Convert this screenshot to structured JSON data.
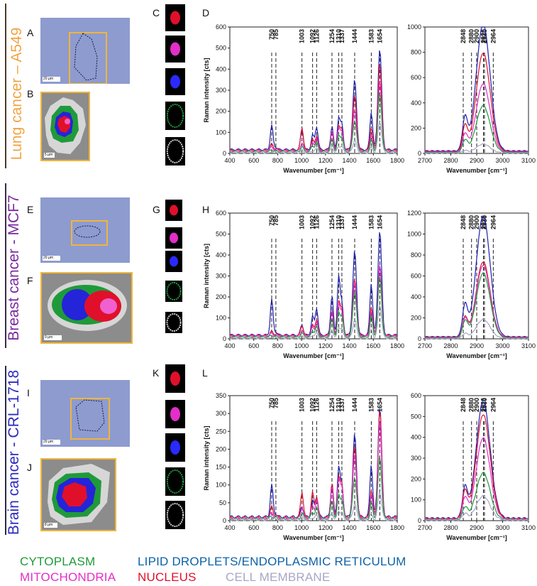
{
  "panels": {
    "A": "A",
    "B": "B",
    "C": "C",
    "D": "D",
    "E": "E",
    "F": "F",
    "G": "G",
    "H": "H",
    "I": "I",
    "J": "J",
    "K": "K",
    "L": "L"
  },
  "row_titles": {
    "lung": "Lung cancer – A549",
    "breast": "Breast cancer - MCF7",
    "brain": "Brain cancer - CRL-1718"
  },
  "colors": {
    "lung": "#f0a443",
    "breast": "#7a2a9e",
    "brain": "#2c2cbf",
    "cytoplasm": "#1f9a3a",
    "lipid": "#0b62a8",
    "mitochondria": "#e12fc8",
    "nucleus": "#e0102b",
    "membrane": "#a8a6c6",
    "blue_line": "#1f1fb0"
  },
  "scale_bars": {
    "A": "20 μm",
    "B": "5 μm",
    "E": "20 μm",
    "F": "9 μm",
    "I": "20 μm",
    "J": "8 μm"
  },
  "legend": {
    "cytoplasm": "CYTOPLASM",
    "lipid": "LIPID DROPLETS/ENDOPLASMIC RETICULUM",
    "mitochondria": "MITOCHONDRIA",
    "nucleus": "NUCLEUS",
    "membrane": "CELL MEMBRANE"
  },
  "chart_data": [
    {
      "id": "D-fingerprint",
      "type": "line",
      "panel": "D",
      "xlabel": "Wavenumber [cm⁻¹]",
      "ylabel": "Raman intensity [cts]",
      "xlim": [
        400,
        1800
      ],
      "ylim": [
        0,
        600
      ],
      "xticks": [
        "400",
        "600",
        "800",
        "1000",
        "1200",
        "1400",
        "1600",
        "1800"
      ],
      "yticks": [
        "0",
        "100",
        "200",
        "300",
        "400",
        "500",
        "600"
      ],
      "peak_labels": [
        "750",
        "785",
        "1003",
        "1092",
        "1126",
        "1254",
        "1310",
        "1337",
        "1444",
        "1583",
        "1654"
      ],
      "peak_x": [
        750,
        785,
        1003,
        1092,
        1126,
        1254,
        1310,
        1337,
        1444,
        1583,
        1654
      ],
      "series": [
        {
          "name": "lipid droplets/ER",
          "color": "#1f1fb0",
          "base": 18,
          "heights": [
            115,
            12,
            95,
            70,
            110,
            110,
            150,
            120,
            330,
            180,
            480
          ]
        },
        {
          "name": "nucleus",
          "color": "#e0102b",
          "base": 15,
          "heights": [
            30,
            10,
            110,
            50,
            70,
            90,
            110,
            100,
            260,
            110,
            410
          ]
        },
        {
          "name": "mitochondria",
          "color": "#e12fc8",
          "base": 12,
          "heights": [
            20,
            8,
            40,
            40,
            60,
            90,
            105,
            95,
            200,
            75,
            330
          ]
        },
        {
          "name": "cytoplasm",
          "color": "#1f9a3a",
          "base": 8,
          "heights": [
            10,
            5,
            25,
            30,
            45,
            60,
            75,
            70,
            150,
            55,
            280
          ]
        },
        {
          "name": "cell membrane",
          "color": "#a8a6c6",
          "base": 3,
          "heights": [
            5,
            3,
            10,
            10,
            20,
            25,
            30,
            30,
            60,
            25,
            150
          ]
        }
      ]
    },
    {
      "id": "D-highwave",
      "type": "line",
      "panel": "D",
      "xlabel": "Wavenumber [cm⁻¹]",
      "ylabel": "",
      "xlim": [
        2700,
        3100
      ],
      "ylim": [
        0,
        1000
      ],
      "xticks": [
        "2700",
        "2800",
        "2900",
        "3000",
        "3100"
      ],
      "yticks": [
        "0",
        "200",
        "400",
        "600",
        "800",
        "1000"
      ],
      "peak_labels": [
        "2848",
        "2880",
        "2900",
        "2926",
        "2930",
        "2964"
      ],
      "peak_x": [
        2848,
        2880,
        2900,
        2926,
        2930,
        2964
      ],
      "series": [
        {
          "name": "lipid droplets/ER",
          "color": "#1f1fb0",
          "base": 20,
          "peak": 1000
        },
        {
          "name": "nucleus",
          "color": "#e0102b",
          "base": 15,
          "peak": 780
        },
        {
          "name": "mitochondria",
          "color": "#e12fc8",
          "base": 12,
          "peak": 540
        },
        {
          "name": "cytoplasm",
          "color": "#1f9a3a",
          "base": 8,
          "peak": 370
        },
        {
          "name": "cell membrane",
          "color": "#a8a6c6",
          "base": 4,
          "peak": 70
        }
      ]
    },
    {
      "id": "H-fingerprint",
      "type": "line",
      "panel": "H",
      "xlabel": "Wavenumber [cm⁻¹]",
      "ylabel": "Raman intensity [cts]",
      "xlim": [
        400,
        1800
      ],
      "ylim": [
        0,
        600
      ],
      "xticks": [
        "400",
        "600",
        "800",
        "1000",
        "1200",
        "1400",
        "1600",
        "1800"
      ],
      "yticks": [
        "0",
        "100",
        "200",
        "300",
        "400",
        "500",
        "600"
      ],
      "peak_labels": [
        "750",
        "785",
        "1003",
        "1092",
        "1126",
        "1254",
        "1310",
        "1337",
        "1444",
        "1583",
        "1654"
      ],
      "peak_x": [
        750,
        785,
        1003,
        1092,
        1126,
        1254,
        1310,
        1337,
        1444,
        1583,
        1654
      ],
      "series": [
        {
          "name": "lipid droplets/ER",
          "color": "#1f1fb0",
          "base": 18,
          "heights": [
            170,
            15,
            50,
            90,
            130,
            190,
            280,
            150,
            400,
            250,
            500
          ]
        },
        {
          "name": "nucleus",
          "color": "#e0102b",
          "base": 15,
          "heights": [
            20,
            10,
            50,
            50,
            80,
            120,
            160,
            130,
            270,
            140,
            330
          ]
        },
        {
          "name": "mitochondria",
          "color": "#e12fc8",
          "base": 12,
          "heights": [
            15,
            8,
            30,
            45,
            70,
            120,
            150,
            120,
            260,
            120,
            340
          ]
        },
        {
          "name": "cytoplasm",
          "color": "#1f9a3a",
          "base": 8,
          "heights": [
            10,
            5,
            20,
            30,
            50,
            90,
            115,
            100,
            220,
            100,
            290
          ]
        },
        {
          "name": "cell membrane",
          "color": "#a8a6c6",
          "base": 3,
          "heights": [
            5,
            3,
            8,
            15,
            25,
            40,
            50,
            45,
            90,
            40,
            160
          ]
        }
      ]
    },
    {
      "id": "H-highwave",
      "type": "line",
      "panel": "H",
      "xlabel": "Wavenumber [cm⁻¹]",
      "ylabel": "",
      "xlim": [
        2700,
        3100
      ],
      "ylim": [
        0,
        1200
      ],
      "xticks": [
        "2700",
        "2800",
        "2900",
        "3000",
        "3100"
      ],
      "yticks": [
        "0",
        "200",
        "400",
        "600",
        "800",
        "1000",
        "1200"
      ],
      "peak_labels": [
        "2848",
        "2880",
        "2900",
        "2926",
        "2930",
        "2964"
      ],
      "peak_x": [
        2848,
        2880,
        2900,
        2926,
        2930,
        2964
      ],
      "series": [
        {
          "name": "lipid droplets/ER",
          "color": "#1f1fb0",
          "base": 20,
          "peak": 1150
        },
        {
          "name": "nucleus",
          "color": "#e0102b",
          "base": 15,
          "peak": 720
        },
        {
          "name": "mitochondria",
          "color": "#e12fc8",
          "base": 12,
          "peak": 690
        },
        {
          "name": "cytoplasm",
          "color": "#1f9a3a",
          "base": 8,
          "peak": 620
        },
        {
          "name": "cell membrane",
          "color": "#a8a6c6",
          "base": 4,
          "peak": 180
        }
      ]
    },
    {
      "id": "L-fingerprint",
      "type": "line",
      "panel": "L",
      "xlabel": "Wavenumber [cm⁻¹]",
      "ylabel": "Raman intensity [cts]",
      "xlim": [
        400,
        1800
      ],
      "ylim": [
        0,
        350
      ],
      "xticks": [
        "400",
        "600",
        "800",
        "1000",
        "1200",
        "1400",
        "1600",
        "1800"
      ],
      "yticks": [
        "0",
        "50",
        "100",
        "150",
        "200",
        "250",
        "300",
        "350"
      ],
      "peak_labels": [
        "750",
        "785",
        "1003",
        "1092",
        "1126",
        "1254",
        "1310",
        "1337",
        "1444",
        "1583",
        "1654"
      ],
      "peak_x": [
        750,
        785,
        1003,
        1092,
        1126,
        1254,
        1310,
        1337,
        1444,
        1583,
        1654
      ],
      "series": [
        {
          "name": "lipid droplets/ER",
          "color": "#1f1fb0",
          "base": 10,
          "heights": [
            90,
            8,
            30,
            45,
            60,
            95,
            140,
            90,
            230,
            150,
            310
          ]
        },
        {
          "name": "nucleus",
          "color": "#e0102b",
          "base": 8,
          "heights": [
            30,
            8,
            75,
            70,
            60,
            95,
            110,
            95,
            200,
            80,
            300
          ]
        },
        {
          "name": "mitochondria",
          "color": "#e12fc8",
          "base": 7,
          "heights": [
            15,
            5,
            30,
            35,
            50,
            85,
            105,
            90,
            180,
            65,
            270
          ]
        },
        {
          "name": "cytoplasm",
          "color": "#1f9a3a",
          "base": 5,
          "heights": [
            8,
            3,
            15,
            20,
            30,
            50,
            65,
            55,
            120,
            45,
            175
          ]
        },
        {
          "name": "cell membrane",
          "color": "#a8a6c6",
          "base": 2,
          "heights": [
            3,
            2,
            6,
            8,
            12,
            20,
            25,
            20,
            45,
            15,
            80
          ]
        }
      ]
    },
    {
      "id": "L-highwave",
      "type": "line",
      "panel": "L",
      "xlabel": "Wavenumber [cm⁻¹]",
      "ylabel": "",
      "xlim": [
        2700,
        3100
      ],
      "ylim": [
        0,
        600
      ],
      "xticks": [
        "2700",
        "2800",
        "2900",
        "3000",
        "3100"
      ],
      "yticks": [
        "0",
        "100",
        "200",
        "300",
        "400",
        "500",
        "600"
      ],
      "peak_labels": [
        "2848",
        "2880",
        "2900",
        "2926",
        "2930",
        "2964"
      ],
      "peak_x": [
        2848,
        2880,
        2900,
        2926,
        2930,
        2964
      ],
      "series": [
        {
          "name": "lipid droplets/ER",
          "color": "#1f1fb0",
          "base": 12,
          "peak": 560
        },
        {
          "name": "nucleus",
          "color": "#e0102b",
          "base": 10,
          "peak": 500
        },
        {
          "name": "mitochondria",
          "color": "#e12fc8",
          "base": 8,
          "peak": 390
        },
        {
          "name": "cytoplasm",
          "color": "#1f9a3a",
          "base": 5,
          "peak": 225
        },
        {
          "name": "cell membrane",
          "color": "#a8a6c6",
          "base": 3,
          "peak": 115
        }
      ]
    }
  ]
}
